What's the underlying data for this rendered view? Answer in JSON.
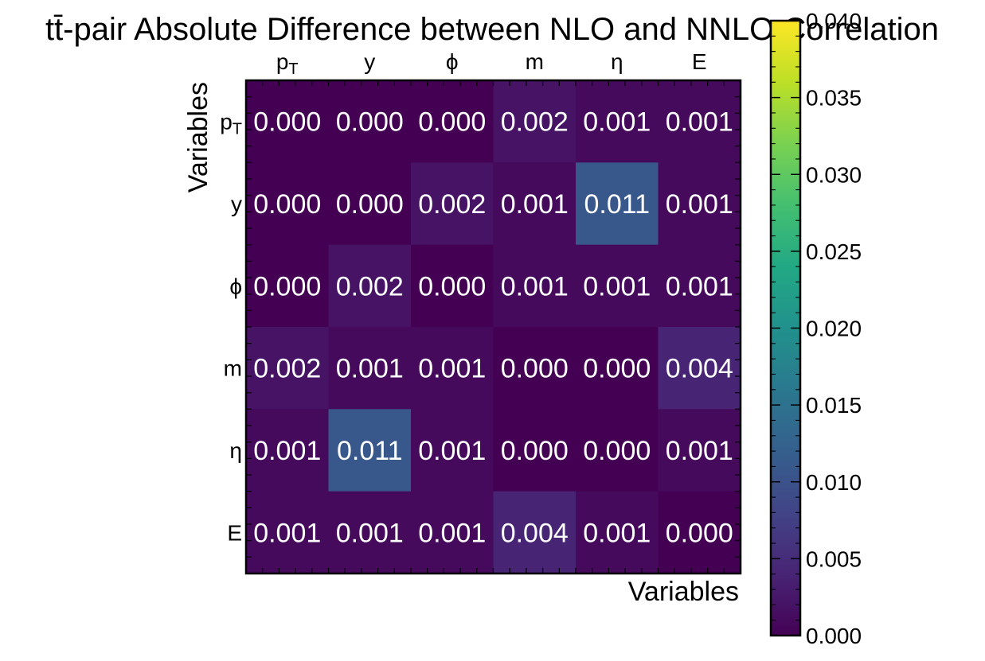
{
  "chart_data": {
    "type": "heatmap",
    "title": "tt̄-pair Absolute Difference between NLO and NNLO Correlation",
    "xlabel": "Variables",
    "ylabel": "Variables",
    "x_tick_labels": [
      "pT",
      "y",
      "ϕ",
      "m",
      "η",
      "E"
    ],
    "y_tick_labels": [
      "pT",
      "y",
      "ϕ",
      "m",
      "η",
      "E"
    ],
    "values": [
      [
        0.0,
        0.0,
        0.0,
        0.002,
        0.001,
        0.001
      ],
      [
        0.0,
        0.0,
        0.002,
        0.001,
        0.011,
        0.001
      ],
      [
        0.0,
        0.002,
        0.0,
        0.001,
        0.001,
        0.001
      ],
      [
        0.002,
        0.001,
        0.001,
        0.0,
        0.0,
        0.004
      ],
      [
        0.001,
        0.011,
        0.001,
        0.0,
        0.0,
        0.001
      ],
      [
        0.001,
        0.001,
        0.001,
        0.004,
        0.001,
        0.0
      ]
    ],
    "cell_labels": [
      [
        "0.000",
        "0.000",
        "0.000",
        "0.002",
        "0.001",
        "0.001"
      ],
      [
        "0.000",
        "0.000",
        "0.002",
        "0.001",
        "0.011",
        "0.001"
      ],
      [
        "0.000",
        "0.002",
        "0.000",
        "0.001",
        "0.001",
        "0.001"
      ],
      [
        "0.002",
        "0.001",
        "0.001",
        "0.000",
        "0.000",
        "0.004"
      ],
      [
        "0.001",
        "0.011",
        "0.001",
        "0.000",
        "0.000",
        "0.001"
      ],
      [
        "0.001",
        "0.001",
        "0.001",
        "0.004",
        "0.001",
        "0.000"
      ]
    ],
    "colorbar": {
      "range": [
        0.0,
        0.04
      ],
      "ticks": [
        0.0,
        0.005,
        0.01,
        0.015,
        0.02,
        0.025,
        0.03,
        0.035,
        0.04
      ],
      "tick_labels": [
        "0.000",
        "0.005",
        "0.010",
        "0.015",
        "0.020",
        "0.025",
        "0.030",
        "0.035",
        "0.040"
      ],
      "colormap": "viridis"
    }
  }
}
